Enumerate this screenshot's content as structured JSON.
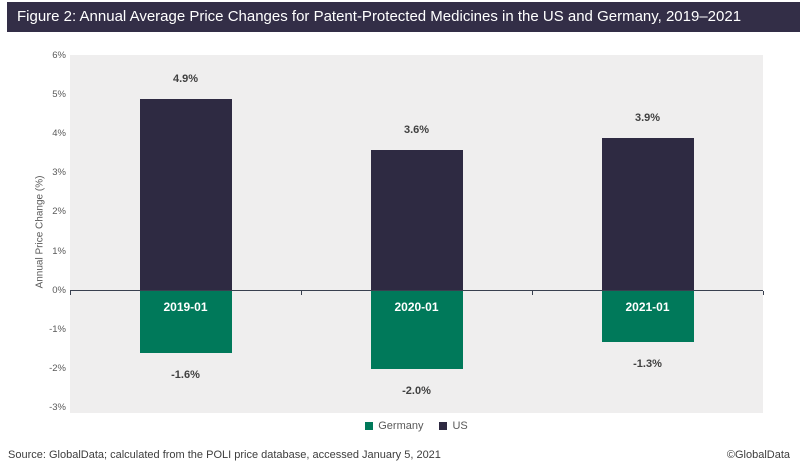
{
  "title_bar": {
    "text": "Figure 2: Annual Average Price Changes for Patent-Protected Medicines in the US and Germany, 2019–2021"
  },
  "chart_data": {
    "type": "bar",
    "categories": [
      "2019-01",
      "2020-01",
      "2021-01"
    ],
    "series": [
      {
        "name": "US",
        "color": "#2e2a42",
        "values": [
          4.9,
          3.6,
          3.9
        ],
        "labels": [
          "4.9%",
          "3.6%",
          "3.9%"
        ]
      },
      {
        "name": "Germany",
        "color": "#00795a",
        "values": [
          -1.6,
          -2.0,
          -1.3
        ],
        "labels": [
          "-1.6%",
          "-2.0%",
          "-1.3%"
        ]
      }
    ],
    "title": "Annual Average Price Changes for Patent-Protected Medicines in the US and Germany, 2019–2021",
    "xlabel": "",
    "ylabel": "Annual Price Change (%)",
    "ylim": [
      -3,
      6
    ],
    "yticks": [
      6,
      5,
      4,
      3,
      2,
      1,
      0,
      -1,
      -2,
      -3
    ],
    "ytick_labels": [
      "6%",
      "5%",
      "4%",
      "3%",
      "2%",
      "1%",
      "0%",
      "-1%",
      "-2%",
      "-3%"
    ],
    "grid": false,
    "legend_position": "bottom",
    "legend": [
      {
        "label": "Germany",
        "color": "#00795a"
      },
      {
        "label": "US",
        "color": "#2e2a42"
      }
    ]
  },
  "footer": {
    "source": "Source: GlobalData; calculated from the POLI price database, accessed January 5, 2021",
    "copyright": "©GlobalData"
  },
  "colors": {
    "title_bg": "#332e47",
    "title_fg": "#ffffff",
    "plot_bg": "#efeeee",
    "axis_text": "#595959",
    "zero_line": "#39404f",
    "data_label": "#404040",
    "category_label": "#ffffff"
  }
}
